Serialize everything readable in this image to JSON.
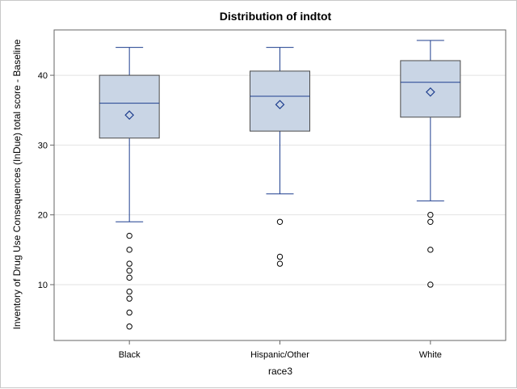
{
  "chart_data": {
    "type": "box",
    "title": "Distribution of indtot",
    "xlabel": "race3",
    "ylabel": "Inventory of Drug Use Consequences (InDue) total score - Baseline",
    "categories": [
      "Black",
      "Hispanic/Other",
      "White"
    ],
    "ylim": [
      2.0,
      46.5
    ],
    "yticks": [
      10,
      20,
      30,
      40
    ],
    "grid": true,
    "legend": "none",
    "series": [
      {
        "category": "Black",
        "whisker_low": 19,
        "q1": 31,
        "median": 36,
        "q3": 40,
        "whisker_high": 44,
        "mean": 34.3,
        "outliers": [
          17,
          15,
          13,
          12,
          11,
          9,
          8,
          6,
          4
        ]
      },
      {
        "category": "Hispanic/Other",
        "whisker_low": 23,
        "q1": 32,
        "median": 37,
        "q3": 40.6,
        "whisker_high": 44,
        "mean": 35.8,
        "outliers": [
          19,
          14,
          13
        ]
      },
      {
        "category": "White",
        "whisker_low": 22,
        "q1": 34,
        "median": 39,
        "q3": 42.1,
        "whisker_high": 45,
        "mean": 37.6,
        "outliers": [
          20,
          19,
          15,
          10
        ]
      }
    ],
    "colors": {
      "box_fill": "#c9d5e5",
      "box_stroke": "#4a4a4a",
      "line": "#1f3f8f",
      "outlier": "#000000",
      "grid": "#e2e2e2",
      "axis": "#666666"
    }
  }
}
